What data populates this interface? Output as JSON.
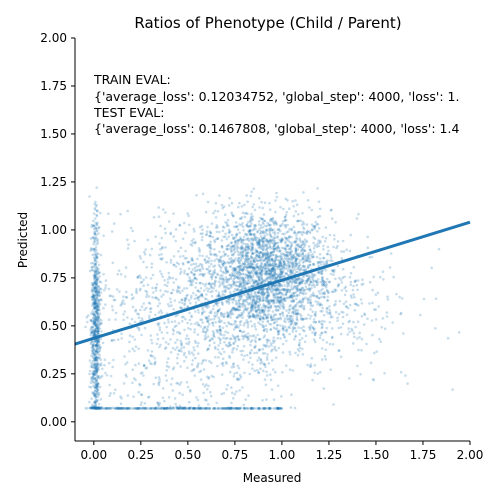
{
  "chart_data": {
    "type": "scatter",
    "title": "Ratios of Phenotype (Child / Parent)",
    "xlabel": "Measured",
    "ylabel": "Predicted",
    "xlim": [
      -0.1,
      2.0
    ],
    "ylim": [
      -0.1,
      2.0
    ],
    "xticks": [
      "0.00",
      "0.25",
      "0.50",
      "0.75",
      "1.00",
      "1.25",
      "1.50",
      "1.75",
      "2.00"
    ],
    "yticks": [
      "0.00",
      "0.25",
      "0.50",
      "0.75",
      "1.00",
      "1.25",
      "1.50",
      "1.75",
      "2.00"
    ],
    "grid": false,
    "annotation_lines": [
      "TRAIN EVAL:",
      "{'average_loss': 0.12034752, 'global_step': 4000, 'loss': 1.",
      "TEST EVAL:",
      "{'average_loss': 0.1467808, 'global_step': 4000, 'loss': 1.4"
    ],
    "series": [
      {
        "type": "scatter",
        "color": "#1f77b4",
        "opacity": 0.25,
        "clusters": [
          {
            "cx": 0.92,
            "cy": 0.78,
            "sx": 0.17,
            "sy": 0.16,
            "n": 2200
          },
          {
            "cx": 0.7,
            "cy": 0.62,
            "sx": 0.3,
            "sy": 0.22,
            "n": 900
          },
          {
            "cx": 0.01,
            "cy": 0.5,
            "sx": 0.012,
            "sy": 0.27,
            "n": 700
          },
          {
            "cx": 0.35,
            "cy": 0.4,
            "sx": 0.3,
            "sy": 0.25,
            "n": 500
          },
          {
            "cx": 1.2,
            "cy": 0.6,
            "sx": 0.25,
            "sy": 0.2,
            "n": 300
          }
        ],
        "floor_y": 0.07,
        "floor_x_range": [
          0.0,
          1.0
        ],
        "floor_n": 300
      },
      {
        "type": "line",
        "name": "",
        "color": "#1f77b4",
        "x": [
          -0.1,
          2.0
        ],
        "y": [
          0.405,
          1.04
        ]
      }
    ]
  }
}
